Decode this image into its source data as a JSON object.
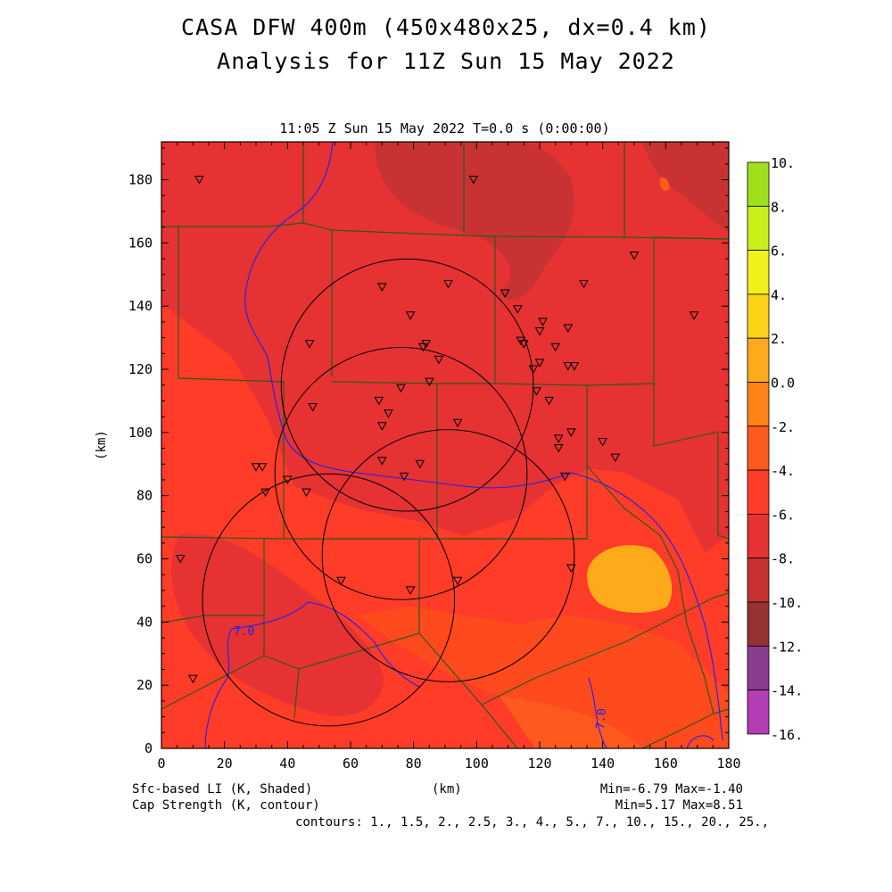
{
  "title_line1": "CASA DFW 400m (450x480x25, dx=0.4 km)",
  "title_line2": "Analysis for 11Z Sun 15 May 2022",
  "subtitle": "11:05 Z Sun 15 May 2022    T=0.0 s (0:00:00)",
  "footer": {
    "shaded_label": "Sfc-based LI (K, Shaded)",
    "contour_label": "Cap Strength (K, contour)",
    "xunit": "(km)",
    "shaded_range": "Min=-6.79 Max=-1.40",
    "contour_range": "Min=5.17 Max=8.51",
    "contours": "contours: 1., 1.5, 2., 2.5, 3., 4., 5., 7., 10., 15., 20., 25.,"
  },
  "chart_data": {
    "type": "heatmap",
    "xlabel": "",
    "ylabel": "(km)",
    "xlim": [
      0,
      180
    ],
    "ylim": [
      0,
      192
    ],
    "x_ticks": [
      "0",
      "20",
      "40",
      "60",
      "80",
      "100",
      "120",
      "140",
      "160",
      "180"
    ],
    "y_ticks": [
      "0",
      "20",
      "40",
      "60",
      "80",
      "100",
      "120",
      "140",
      "160",
      "180"
    ],
    "contour_labels": [
      "7.0",
      "7.0"
    ],
    "colorbar": {
      "levels": [
        "10.",
        "8.",
        "6.",
        "4.",
        "2.",
        "0.0",
        "-2.",
        "-4.",
        "-6.",
        "-8.",
        "-10.",
        "-12.",
        "-14.",
        "-16."
      ],
      "colors": [
        "#9fe01a",
        "#c8f01a",
        "#f0f01a",
        "#ffd21a",
        "#ffaa1a",
        "#ff8214",
        "#ff5a1e",
        "#ff3c28",
        "#e63232",
        "#c83232",
        "#963232",
        "#8c3c8c",
        "#b43cb4",
        "#dc3cdc"
      ]
    },
    "radar_circles": [
      {
        "center_km": [
          78,
          115
        ],
        "radius_km": 40
      },
      {
        "center_km": [
          76,
          87
        ],
        "radius_km": 40
      },
      {
        "center_km": [
          91,
          61
        ],
        "radius_km": 40
      },
      {
        "center_km": [
          53,
          47
        ],
        "radius_km": 40
      }
    ],
    "stations_km": [
      [
        12,
        180
      ],
      [
        99,
        180
      ],
      [
        150,
        156
      ],
      [
        134,
        147
      ],
      [
        91,
        147
      ],
      [
        70,
        146
      ],
      [
        109,
        144
      ],
      [
        113,
        139
      ],
      [
        79,
        137
      ],
      [
        169,
        137
      ],
      [
        121,
        135
      ],
      [
        120,
        132
      ],
      [
        129,
        133
      ],
      [
        47,
        128
      ],
      [
        114,
        129
      ],
      [
        115,
        128
      ],
      [
        83,
        127
      ],
      [
        84,
        128
      ],
      [
        125,
        127
      ],
      [
        88,
        123
      ],
      [
        120,
        122
      ],
      [
        131,
        121
      ],
      [
        129,
        121
      ],
      [
        118,
        120
      ],
      [
        85,
        116
      ],
      [
        76,
        114
      ],
      [
        119,
        113
      ],
      [
        123,
        110
      ],
      [
        69,
        110
      ],
      [
        48,
        108
      ],
      [
        72,
        106
      ],
      [
        94,
        103
      ],
      [
        70,
        102
      ],
      [
        130,
        100
      ],
      [
        126,
        98
      ],
      [
        140,
        97
      ],
      [
        126,
        95
      ],
      [
        144,
        92
      ],
      [
        70,
        91
      ],
      [
        82,
        90
      ],
      [
        30,
        89
      ],
      [
        32,
        89
      ],
      [
        128,
        86
      ],
      [
        77,
        86
      ],
      [
        40,
        85
      ],
      [
        33,
        81
      ],
      [
        46,
        81
      ],
      [
        6,
        60
      ],
      [
        130,
        57
      ],
      [
        57,
        53
      ],
      [
        94,
        53
      ],
      [
        79,
        50
      ],
      [
        10,
        22
      ]
    ]
  }
}
